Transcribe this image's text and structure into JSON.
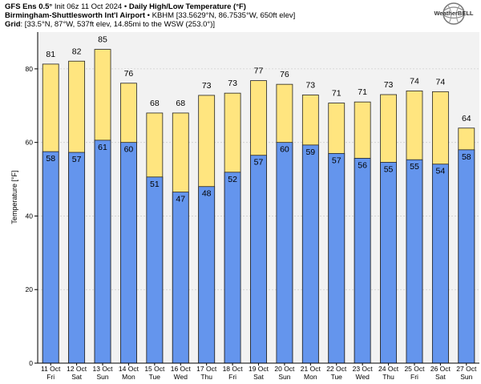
{
  "header": {
    "line1_model": "GFS Ens 0.5°",
    "line1_init": " Init 06z 11 Oct 2024 • ",
    "line1_title": "Daily High/Low Temperature (°F)",
    "line2_station": "Birmingham-Shuttlesworth Int'l Airport",
    "line2_detail": " • KBHM [33.5629°N, 86.7535°W, 650ft elev]",
    "line3_label": "Grid",
    "line3_detail": ": [33.5°N, 87°W, 537ft elev, 14.85mi to the WSW (253.0°)]"
  },
  "logo": {
    "text": "WeatherBELL",
    "icon": "weatherbell-globe-logo"
  },
  "chart_data": {
    "type": "bar",
    "title": "Daily High/Low Temperature (°F)",
    "ylabel": "Temperature [°F]",
    "xlabel": "",
    "ylim": [
      0,
      90
    ],
    "yticks": [
      0,
      20,
      40,
      60,
      80
    ],
    "grid": true,
    "categories": [
      {
        "date": "11 Oct",
        "day": "Fri"
      },
      {
        "date": "12 Oct",
        "day": "Sat"
      },
      {
        "date": "13 Oct",
        "day": "Sun"
      },
      {
        "date": "14 Oct",
        "day": "Mon"
      },
      {
        "date": "15 Oct",
        "day": "Tue"
      },
      {
        "date": "16 Oct",
        "day": "Wed"
      },
      {
        "date": "17 Oct",
        "day": "Thu"
      },
      {
        "date": "18 Oct",
        "day": "Fri"
      },
      {
        "date": "19 Oct",
        "day": "Sat"
      },
      {
        "date": "20 Oct",
        "day": "Sun"
      },
      {
        "date": "21 Oct",
        "day": "Mon"
      },
      {
        "date": "22 Oct",
        "day": "Tue"
      },
      {
        "date": "23 Oct",
        "day": "Wed"
      },
      {
        "date": "24 Oct",
        "day": "Thu"
      },
      {
        "date": "25 Oct",
        "day": "Fri"
      },
      {
        "date": "26 Oct",
        "day": "Sat"
      },
      {
        "date": "27 Oct",
        "day": "Sun"
      }
    ],
    "high_labels": [
      81,
      82,
      85,
      76,
      68,
      68,
      73,
      73,
      77,
      76,
      73,
      71,
      71,
      73,
      74,
      74,
      64
    ],
    "low_labels": [
      58,
      57,
      61,
      60,
      51,
      47,
      48,
      52,
      57,
      60,
      59,
      57,
      56,
      55,
      55,
      54,
      58
    ],
    "series": [
      {
        "key": "high",
        "color": "#ffe57f",
        "values": [
          81.3,
          82.1,
          85.3,
          76.1,
          68.0,
          68.0,
          72.8,
          73.4,
          76.8,
          75.8,
          72.9,
          70.7,
          71.0,
          73.0,
          74.0,
          73.8,
          63.9
        ]
      },
      {
        "key": "low",
        "color": "#6495ed",
        "values": [
          57.5,
          57.3,
          60.6,
          60.0,
          50.6,
          46.5,
          48.0,
          51.9,
          56.5,
          60.0,
          59.3,
          57.0,
          55.7,
          54.6,
          55.3,
          54.1,
          58.0
        ]
      }
    ],
    "background": "#f2f2f2"
  }
}
